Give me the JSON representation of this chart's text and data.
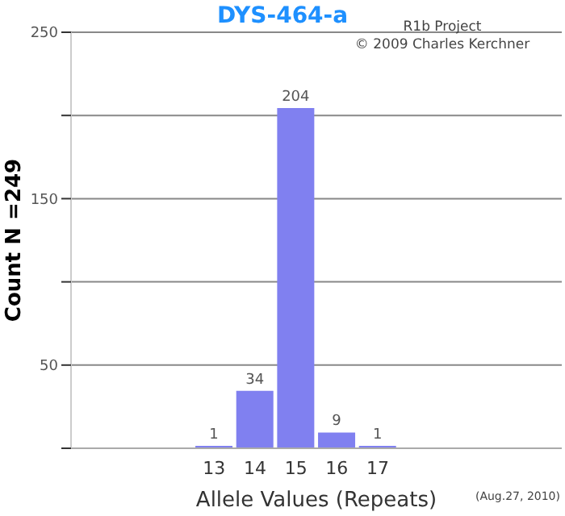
{
  "chart_data": {
    "type": "bar",
    "title": "DYS-464-a",
    "xlabel": "Allele Values (Repeats)",
    "ylabel": "Count N =249",
    "categories": [
      null,
      null,
      null,
      "13",
      "14",
      "15",
      "16",
      "17",
      null,
      null,
      null,
      null
    ],
    "values": [
      null,
      null,
      null,
      1,
      34,
      204,
      9,
      1,
      null,
      null,
      null,
      null
    ],
    "color": "#8080f0",
    "ylim": [
      0,
      250
    ],
    "yticks": [
      {
        "value": 0,
        "label": null
      },
      50,
      {
        "value": 100,
        "label": null
      },
      150,
      {
        "value": 200,
        "label": null
      },
      250
    ],
    "grid": "y",
    "data_labels": true,
    "annotations": [
      "R1b Project",
      "© 2009 Charles Kerchner",
      "(Aug.27, 2010)"
    ]
  }
}
